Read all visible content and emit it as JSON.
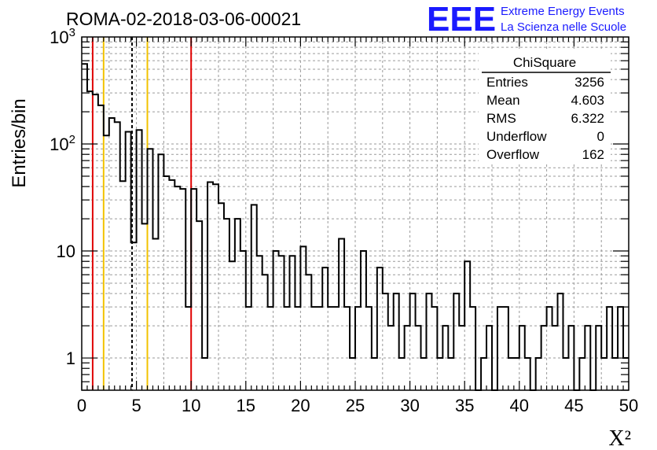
{
  "title": "ROMA-02-2018-03-06-00021",
  "logo": {
    "mark": "EEE",
    "line1": "Extreme Energy Events",
    "line2": "La Scienza nelle Scuole",
    "color": "#1a1aff"
  },
  "chart_data": {
    "type": "bar",
    "style": "step-histogram",
    "xlabel": "X²",
    "ylabel": "Entries/bin",
    "xlim": [
      0,
      50
    ],
    "ylim": [
      0.5,
      1000
    ],
    "yscale": "log",
    "grid": true,
    "x_ticks": [
      "0",
      "5",
      "10",
      "15",
      "20",
      "25",
      "30",
      "35",
      "40",
      "45",
      "50"
    ],
    "y_ticks": [
      "1",
      "10",
      "10²",
      "10³"
    ],
    "bin_width": 0.5,
    "bin_values": [
      560,
      310,
      290,
      230,
      120,
      175,
      160,
      45,
      130,
      12,
      135,
      18,
      90,
      13,
      80,
      50,
      46,
      40,
      38,
      3,
      38,
      19,
      1,
      44,
      42,
      28,
      20,
      8,
      20,
      10,
      3,
      27,
      9,
      6,
      3,
      10,
      9,
      3,
      9,
      3,
      11,
      6,
      3,
      3,
      7,
      3,
      3,
      13,
      3,
      1,
      3,
      10,
      3,
      1,
      7,
      4,
      2,
      4,
      1,
      2,
      4,
      2,
      1,
      4,
      3,
      1,
      2,
      1,
      4,
      2,
      8,
      3,
      0,
      1,
      2,
      0,
      3,
      3,
      1,
      1,
      2,
      1,
      0,
      1,
      2,
      3,
      2,
      4,
      1,
      2,
      0,
      1,
      2,
      0,
      2,
      1,
      3,
      1,
      3,
      1
    ],
    "vertical_lines": [
      {
        "x": 1,
        "color": "#e00000",
        "style": "solid"
      },
      {
        "x": 2,
        "color": "#f2c200",
        "style": "solid"
      },
      {
        "x": 4.6,
        "color": "#000000",
        "style": "dashed"
      },
      {
        "x": 6,
        "color": "#f2c200",
        "style": "solid"
      },
      {
        "x": 10,
        "color": "#e00000",
        "style": "solid"
      }
    ],
    "stats_box": {
      "title": "ChiSquare",
      "rows": [
        {
          "label": "Entries",
          "value": "3256"
        },
        {
          "label": "Mean",
          "value": "4.603"
        },
        {
          "label": "RMS",
          "value": "6.322"
        },
        {
          "label": "Underflow",
          "value": "0"
        },
        {
          "label": "Overflow",
          "value": "162"
        }
      ]
    }
  }
}
